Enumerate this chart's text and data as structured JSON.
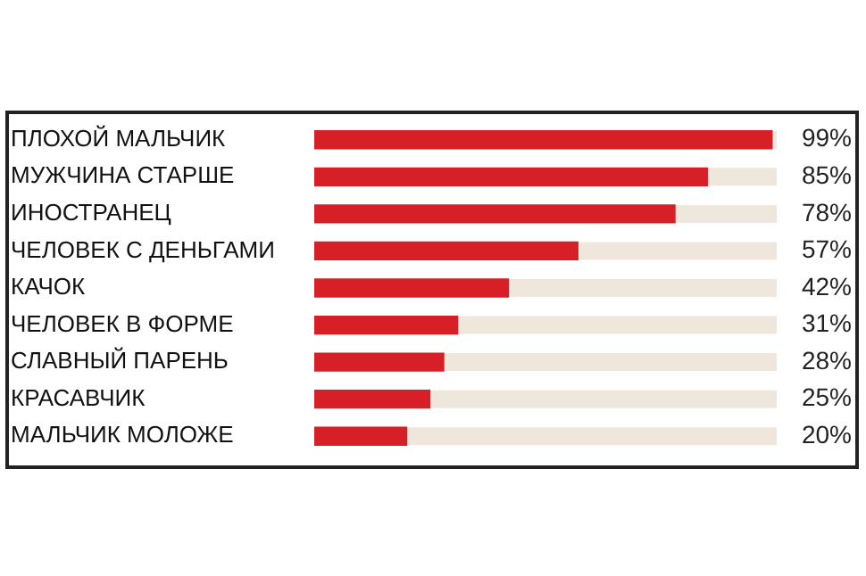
{
  "chart_data": {
    "type": "bar",
    "orientation": "horizontal",
    "categories": [
      "ПЛОХОЙ МАЛЬЧИК",
      "МУЖЧИНА СТАРШЕ",
      "ИНОСТРАНЕЦ",
      "ЧЕЛОВЕК С ДЕНЬГАМИ",
      "КАЧОК",
      "ЧЕЛОВЕК В ФОРМЕ",
      "СЛАВНЫЙ ПАРЕНЬ",
      "КРАСАВЧИК",
      "МАЛЬЧИК МОЛОЖЕ"
    ],
    "values": [
      99,
      85,
      78,
      57,
      42,
      31,
      28,
      25,
      20
    ],
    "value_labels": [
      "99%",
      "85%",
      "78%",
      "57%",
      "42%",
      "31%",
      "28%",
      "25%",
      "20%"
    ],
    "color": "#d71f27",
    "xlim": [
      0,
      100
    ],
    "tick_labels": "y",
    "legend": false
  }
}
